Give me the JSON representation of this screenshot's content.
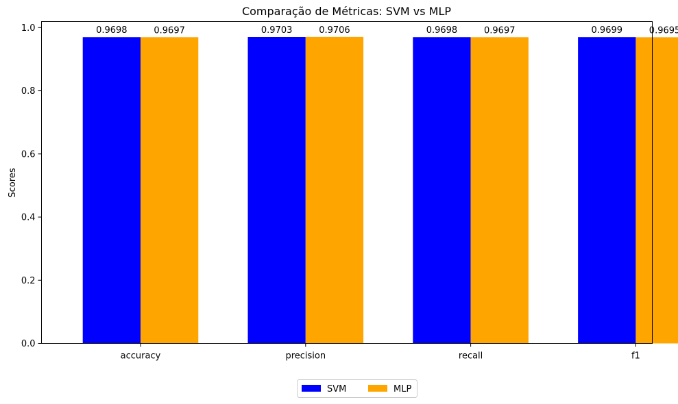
{
  "chart_data": {
    "type": "bar",
    "title": "Comparação de Métricas: SVM vs MLP",
    "xlabel": "",
    "ylabel": "Scores",
    "categories": [
      "accuracy",
      "precision",
      "recall",
      "f1"
    ],
    "series": [
      {
        "name": "SVM",
        "color": "#0000ff",
        "values": [
          0.9698,
          0.9703,
          0.9698,
          0.9699
        ]
      },
      {
        "name": "MLP",
        "color": "#ffa500",
        "values": [
          0.9697,
          0.9706,
          0.9697,
          0.9695
        ]
      }
    ],
    "data_labels": [
      [
        "0.9698",
        "0.9703",
        "0.9698",
        "0.9699"
      ],
      [
        "0.9697",
        "0.9706",
        "0.9697",
        "0.9695"
      ]
    ],
    "ylim": [
      0,
      1.0191
    ],
    "yticks": [
      "0.0",
      "0.2",
      "0.4",
      "0.6",
      "0.8",
      "1.0"
    ],
    "grid": false,
    "legend_position": "bottom-center"
  }
}
